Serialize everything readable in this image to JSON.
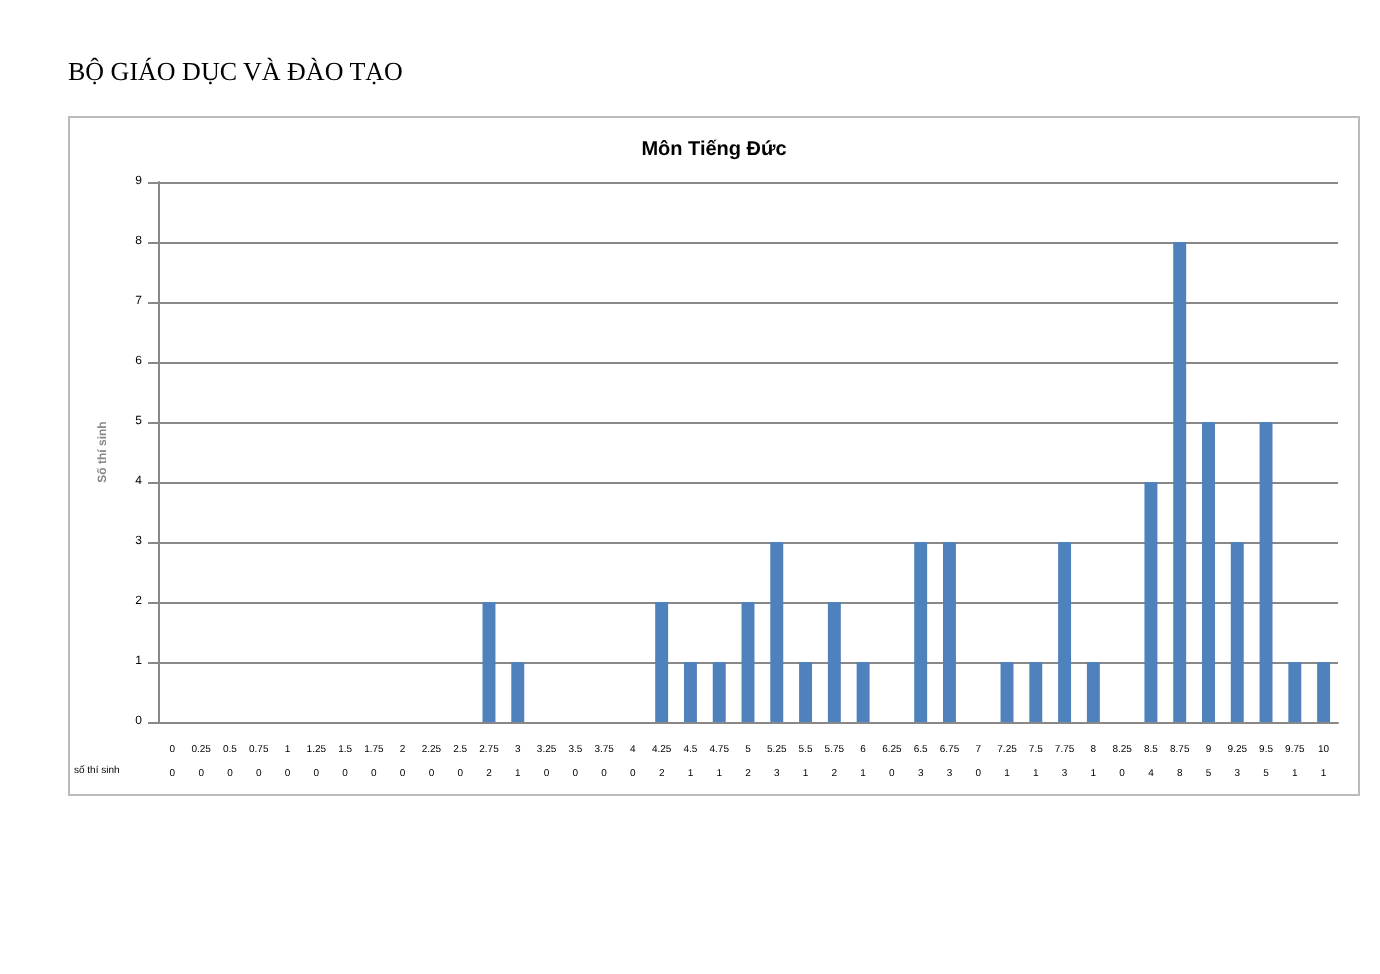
{
  "chart_data": {
    "type": "bar",
    "title": "Môn Tiếng Đức",
    "ylabel": "Số thí sinh",
    "annotations": [
      "BỘ GIÁO DỤC VÀ ĐÀO TẠO",
      "số thí sinh"
    ],
    "categories": [
      "0",
      "0.25",
      "0.5",
      "0.75",
      "1",
      "1.25",
      "1.5",
      "1.75",
      "2",
      "2.25",
      "2.5",
      "2.75",
      "3",
      "3.25",
      "3.5",
      "3.75",
      "4",
      "4.25",
      "4.5",
      "4.75",
      "5",
      "5.25",
      "5.5",
      "5.75",
      "6",
      "6.25",
      "6.5",
      "6.75",
      "7",
      "7.25",
      "7.5",
      "7.75",
      "8",
      "8.25",
      "8.5",
      "8.75",
      "9",
      "9.25",
      "9.5",
      "9.75",
      "10"
    ],
    "values": [
      0,
      0,
      0,
      0,
      0,
      0,
      0,
      0,
      0,
      0,
      0,
      2,
      1,
      0,
      0,
      0,
      0,
      2,
      1,
      1,
      2,
      3,
      1,
      2,
      1,
      0,
      3,
      3,
      0,
      1,
      1,
      3,
      1,
      0,
      4,
      8,
      5,
      3,
      5,
      1,
      1
    ],
    "color": "#4f81bd",
    "ylim": [
      0,
      9
    ],
    "yticks": [
      0,
      1,
      2,
      3,
      4,
      5,
      6,
      7,
      8,
      9
    ],
    "grid": "y",
    "data_labels": true
  }
}
